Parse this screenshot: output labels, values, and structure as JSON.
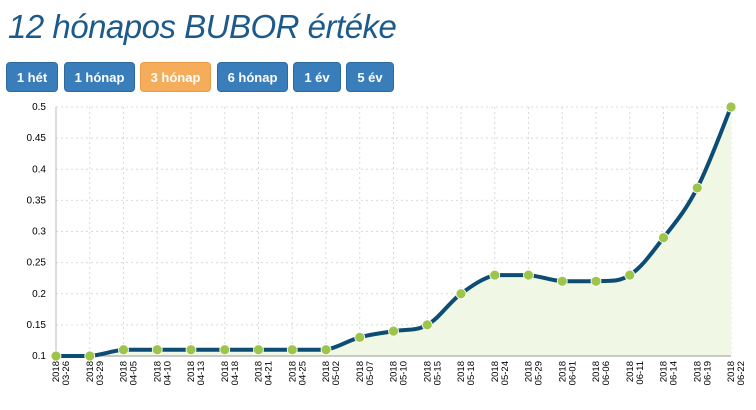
{
  "page": {
    "title": "12 hónapos BUBOR értéke"
  },
  "range_buttons": [
    {
      "label": "1 hét",
      "active": false
    },
    {
      "label": "1 hónap",
      "active": false
    },
    {
      "label": "3 hónap",
      "active": true
    },
    {
      "label": "6 hónap",
      "active": false
    },
    {
      "label": "1 év",
      "active": false
    },
    {
      "label": "5 év",
      "active": false
    }
  ],
  "colors": {
    "button": "#3a7dbb",
    "button_active": "#f5ad5c",
    "line": "#0e4d73",
    "point": "#9cc54a",
    "area": "#f1f7e5",
    "title": "#1d5a8c"
  },
  "chart_data": {
    "type": "line",
    "title": "",
    "xlabel": "",
    "ylabel": "",
    "ylim": [
      0.1,
      0.5
    ],
    "yticks": [
      "0.1",
      "0.15",
      "0.2",
      "0.25",
      "0.3",
      "0.35",
      "0.4",
      "0.45",
      "0.5"
    ],
    "grid": true,
    "x": [
      "2018-03-26",
      "2018-03-29",
      "2018-04-05",
      "2018-04-10",
      "2018-04-13",
      "2018-04-18",
      "2018-04-21",
      "2018-04-25",
      "2018-05-02",
      "2018-05-07",
      "2018-05-10",
      "2018-05-15",
      "2018-05-18",
      "2018-05-24",
      "2018-05-29",
      "2018-06-01",
      "2018-06-06",
      "2018-06-11",
      "2018-06-14",
      "2018-06-19",
      "2018-06-22"
    ],
    "series": [
      {
        "values": [
          0.1,
          0.1,
          0.11,
          0.11,
          0.11,
          0.11,
          0.11,
          0.11,
          0.11,
          0.13,
          0.14,
          0.15,
          0.2,
          0.23,
          0.23,
          0.22,
          0.22,
          0.23,
          0.29,
          0.37,
          0.5
        ]
      }
    ]
  }
}
